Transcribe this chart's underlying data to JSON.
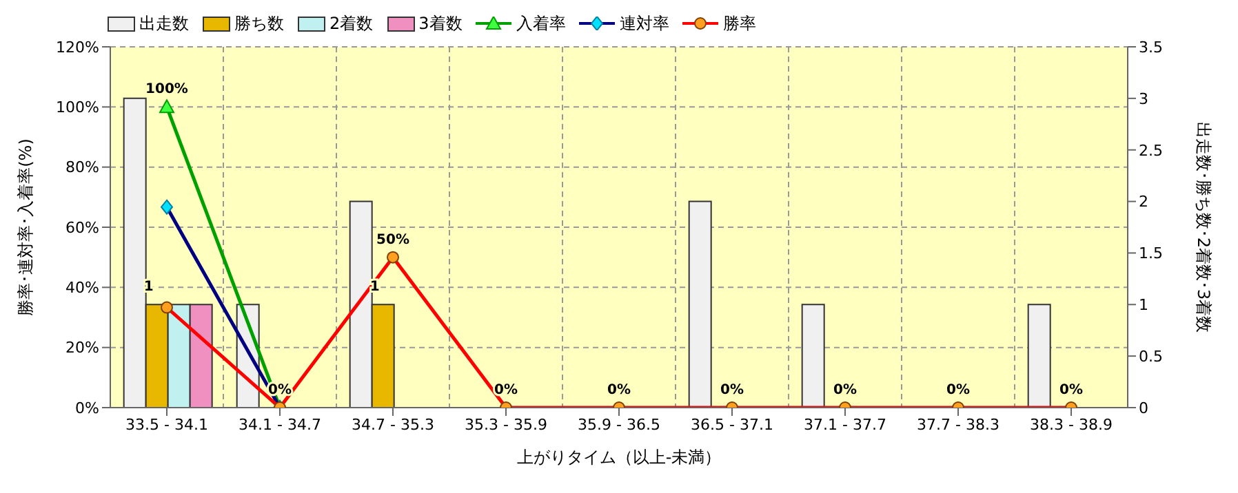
{
  "chart_data": {
    "type": "bar",
    "categories": [
      "33.5 - 34.1",
      "34.1 - 34.7",
      "34.7 - 35.3",
      "35.3 - 35.9",
      "35.9 - 36.5",
      "36.5 - 37.1",
      "37.1 - 37.7",
      "37.7 - 38.3",
      "38.3 - 38.9"
    ],
    "series": [
      {
        "name": "出走数",
        "axis": "y2",
        "color": "#f0f0f0",
        "values": [
          3,
          1,
          2,
          0,
          0,
          2,
          1,
          0,
          1
        ]
      },
      {
        "name": "勝ち数",
        "axis": "y2",
        "color": "#e8b800",
        "values": [
          1,
          0,
          1,
          0,
          0,
          0,
          0,
          0,
          0
        ],
        "value_labels": [
          "1",
          null,
          "1",
          null,
          null,
          null,
          null,
          null,
          null
        ]
      },
      {
        "name": "2着数",
        "axis": "y2",
        "color": "#c0f0f0",
        "values": [
          1,
          0,
          0,
          0,
          0,
          0,
          0,
          0,
          0
        ]
      },
      {
        "name": "3着数",
        "axis": "y2",
        "color": "#f090c0",
        "values": [
          1,
          0,
          0,
          0,
          0,
          0,
          0,
          0,
          0
        ]
      },
      {
        "name": "入着率",
        "type": "line",
        "color": "#00a000",
        "marker": "triangle",
        "values": [
          100,
          0,
          null,
          null,
          null,
          null,
          null,
          null,
          null
        ],
        "value_labels": [
          "100%",
          null,
          null,
          null,
          null,
          null,
          null,
          null,
          null
        ]
      },
      {
        "name": "連対率",
        "type": "line",
        "color": "#000080",
        "marker": "diamond",
        "values": [
          66.7,
          0,
          null,
          null,
          null,
          null,
          null,
          null,
          null
        ]
      },
      {
        "name": "勝率",
        "type": "line",
        "color": "#ff0000",
        "marker": "circle",
        "values": [
          33.3,
          0,
          50,
          0,
          0,
          0,
          0,
          0,
          0
        ],
        "value_labels": [
          null,
          "0%",
          "50%",
          "0%",
          "0%",
          "0%",
          "0%",
          "0%",
          "0%"
        ]
      }
    ],
    "xlabel": "上がりタイム（以上-未満）",
    "ylabel": "勝率･連対率･入着率(%)",
    "y2label": "出走数･勝ち数･2着数･3着数",
    "ylim": [
      0,
      120
    ],
    "yticks": [
      {
        "value": 0,
        "label": "0%"
      },
      {
        "value": 20,
        "label": "20%"
      },
      {
        "value": 40,
        "label": "40%"
      },
      {
        "value": 60,
        "label": "60%"
      },
      {
        "value": 80,
        "label": "80%"
      },
      {
        "value": 100,
        "label": "100%"
      },
      {
        "value": 120,
        "label": "120%"
      }
    ],
    "y2lim": [
      0,
      3.5
    ],
    "y2ticks": [
      0,
      0.5,
      1,
      1.5,
      2,
      2.5,
      3,
      3.5
    ],
    "grid": true,
    "legend": "top left"
  }
}
